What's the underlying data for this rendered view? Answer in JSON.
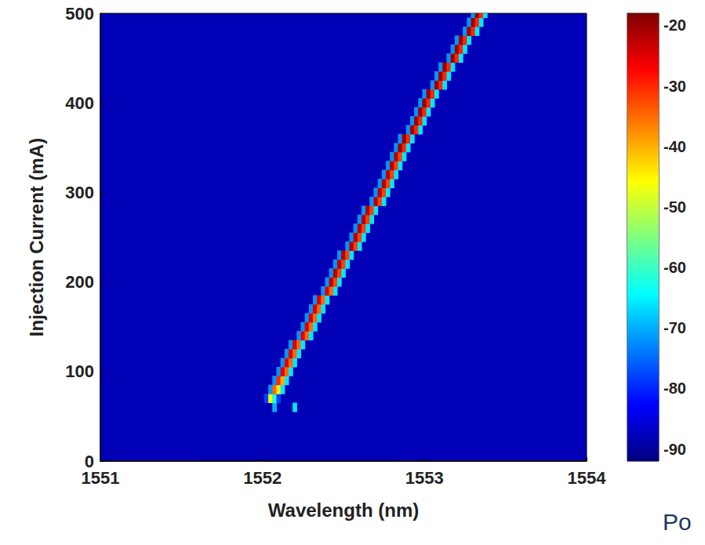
{
  "chart_data": {
    "type": "heatmap",
    "x_label": "Wavelength (nm)",
    "y_label": "Injection Current (mA)",
    "xlim": [
      1551,
      1554
    ],
    "xticks": [
      1551,
      1552,
      1553,
      1554
    ],
    "ylim": [
      0,
      500
    ],
    "yticks": [
      0,
      100,
      200,
      300,
      400,
      500
    ],
    "background_value": -88,
    "colorbar": {
      "range": [
        -92,
        -18
      ],
      "ticks": [
        -20,
        -30,
        -40,
        -50,
        -60,
        -70,
        -80,
        -90
      ]
    },
    "annotations": [
      "Po"
    ],
    "cells": [
      [
        1552.075,
        60,
        -70
      ],
      [
        1552.2,
        60,
        -66
      ],
      [
        1552.025,
        70,
        -78
      ],
      [
        1552.05,
        70,
        -45
      ],
      [
        1552.075,
        70,
        -62
      ],
      [
        1552.1,
        70,
        -78
      ],
      [
        1552.05,
        80,
        -72
      ],
      [
        1552.075,
        80,
        -35
      ],
      [
        1552.1,
        80,
        -45
      ],
      [
        1552.125,
        80,
        -66
      ],
      [
        1552.075,
        90,
        -72
      ],
      [
        1552.1,
        90,
        -30
      ],
      [
        1552.125,
        90,
        -40
      ],
      [
        1552.15,
        90,
        -66
      ],
      [
        1552.1,
        100,
        -72
      ],
      [
        1552.125,
        100,
        -25
      ],
      [
        1552.15,
        100,
        -35
      ],
      [
        1552.175,
        100,
        -66
      ],
      [
        1552.125,
        110,
        -72
      ],
      [
        1552.15,
        110,
        -25
      ],
      [
        1552.175,
        110,
        -35
      ],
      [
        1552.2,
        110,
        -66
      ],
      [
        1552.15,
        120,
        -72
      ],
      [
        1552.175,
        120,
        -25
      ],
      [
        1552.2,
        120,
        -35
      ],
      [
        1552.225,
        120,
        -66
      ],
      [
        1552.175,
        130,
        -72
      ],
      [
        1552.2,
        130,
        -25
      ],
      [
        1552.225,
        130,
        -35
      ],
      [
        1552.25,
        130,
        -66
      ],
      [
        1552.225,
        140,
        -72
      ],
      [
        1552.25,
        140,
        -25
      ],
      [
        1552.275,
        140,
        -35
      ],
      [
        1552.3,
        140,
        -66
      ],
      [
        1552.25,
        150,
        -72
      ],
      [
        1552.275,
        150,
        -25
      ],
      [
        1552.3,
        150,
        -35
      ],
      [
        1552.325,
        150,
        -66
      ],
      [
        1552.275,
        160,
        -72
      ],
      [
        1552.3,
        160,
        -25
      ],
      [
        1552.325,
        160,
        -35
      ],
      [
        1552.35,
        160,
        -66
      ],
      [
        1552.3,
        170,
        -72
      ],
      [
        1552.325,
        170,
        -25
      ],
      [
        1552.35,
        170,
        -35
      ],
      [
        1552.375,
        170,
        -66
      ],
      [
        1552.325,
        180,
        -72
      ],
      [
        1552.35,
        180,
        -25
      ],
      [
        1552.375,
        180,
        -35
      ],
      [
        1552.4,
        180,
        -66
      ],
      [
        1552.375,
        190,
        -72
      ],
      [
        1552.4,
        190,
        -25
      ],
      [
        1552.425,
        190,
        -35
      ],
      [
        1552.45,
        190,
        -66
      ],
      [
        1552.4,
        200,
        -72
      ],
      [
        1552.425,
        200,
        -22
      ],
      [
        1552.45,
        200,
        -32
      ],
      [
        1552.475,
        200,
        -66
      ],
      [
        1552.425,
        210,
        -72
      ],
      [
        1552.45,
        210,
        -22
      ],
      [
        1552.475,
        210,
        -32
      ],
      [
        1552.5,
        210,
        -66
      ],
      [
        1552.45,
        220,
        -72
      ],
      [
        1552.475,
        220,
        -22
      ],
      [
        1552.5,
        220,
        -32
      ],
      [
        1552.525,
        220,
        -66
      ],
      [
        1552.475,
        230,
        -72
      ],
      [
        1552.5,
        230,
        -22
      ],
      [
        1552.525,
        230,
        -32
      ],
      [
        1552.55,
        230,
        -66
      ],
      [
        1552.525,
        240,
        -72
      ],
      [
        1552.55,
        240,
        -22
      ],
      [
        1552.575,
        240,
        -32
      ],
      [
        1552.6,
        240,
        -66
      ],
      [
        1552.55,
        250,
        -72
      ],
      [
        1552.575,
        250,
        -22
      ],
      [
        1552.6,
        250,
        -32
      ],
      [
        1552.625,
        250,
        -66
      ],
      [
        1552.575,
        260,
        -72
      ],
      [
        1552.6,
        260,
        -22
      ],
      [
        1552.625,
        260,
        -32
      ],
      [
        1552.65,
        260,
        -66
      ],
      [
        1552.6,
        270,
        -72
      ],
      [
        1552.625,
        270,
        -22
      ],
      [
        1552.65,
        270,
        -32
      ],
      [
        1552.675,
        270,
        -66
      ],
      [
        1552.625,
        280,
        -72
      ],
      [
        1552.65,
        280,
        -22
      ],
      [
        1552.675,
        280,
        -32
      ],
      [
        1552.7,
        280,
        -66
      ],
      [
        1552.675,
        290,
        -72
      ],
      [
        1552.7,
        290,
        -22
      ],
      [
        1552.725,
        290,
        -32
      ],
      [
        1552.75,
        290,
        -66
      ],
      [
        1552.7,
        300,
        -72
      ],
      [
        1552.725,
        300,
        -22
      ],
      [
        1552.75,
        300,
        -32
      ],
      [
        1552.775,
        300,
        -66
      ],
      [
        1552.725,
        310,
        -72
      ],
      [
        1552.75,
        310,
        -22
      ],
      [
        1552.775,
        310,
        -32
      ],
      [
        1552.8,
        310,
        -66
      ],
      [
        1552.75,
        320,
        -72
      ],
      [
        1552.775,
        320,
        -22
      ],
      [
        1552.8,
        320,
        -32
      ],
      [
        1552.825,
        320,
        -66
      ],
      [
        1552.775,
        330,
        -72
      ],
      [
        1552.8,
        330,
        -22
      ],
      [
        1552.825,
        330,
        -32
      ],
      [
        1552.85,
        330,
        -66
      ],
      [
        1552.8,
        340,
        -72
      ],
      [
        1552.825,
        340,
        -22
      ],
      [
        1552.85,
        340,
        -32
      ],
      [
        1552.875,
        340,
        -66
      ],
      [
        1552.825,
        350,
        -72
      ],
      [
        1552.85,
        350,
        -20
      ],
      [
        1552.875,
        350,
        -30
      ],
      [
        1552.9,
        350,
        -66
      ],
      [
        1552.85,
        360,
        -72
      ],
      [
        1552.875,
        360,
        -20
      ],
      [
        1552.9,
        360,
        -30
      ],
      [
        1552.925,
        360,
        -66
      ],
      [
        1552.9,
        370,
        -72
      ],
      [
        1552.925,
        370,
        -20
      ],
      [
        1552.95,
        370,
        -30
      ],
      [
        1552.975,
        370,
        -66
      ],
      [
        1552.925,
        380,
        -72
      ],
      [
        1552.95,
        380,
        -20
      ],
      [
        1552.975,
        380,
        -30
      ],
      [
        1553.0,
        380,
        -66
      ],
      [
        1552.95,
        390,
        -72
      ],
      [
        1552.975,
        390,
        -20
      ],
      [
        1553.0,
        390,
        -30
      ],
      [
        1553.025,
        390,
        -66
      ],
      [
        1552.975,
        400,
        -72
      ],
      [
        1553.0,
        400,
        -20
      ],
      [
        1553.025,
        400,
        -30
      ],
      [
        1553.05,
        400,
        -66
      ],
      [
        1553.0,
        410,
        -72
      ],
      [
        1553.025,
        410,
        -20
      ],
      [
        1553.05,
        410,
        -30
      ],
      [
        1553.075,
        410,
        -66
      ],
      [
        1553.05,
        420,
        -72
      ],
      [
        1553.075,
        420,
        -20
      ],
      [
        1553.1,
        420,
        -30
      ],
      [
        1553.125,
        420,
        -66
      ],
      [
        1553.075,
        430,
        -72
      ],
      [
        1553.1,
        430,
        -20
      ],
      [
        1553.125,
        430,
        -30
      ],
      [
        1553.15,
        430,
        -66
      ],
      [
        1553.1,
        440,
        -72
      ],
      [
        1553.125,
        440,
        -20
      ],
      [
        1553.15,
        440,
        -30
      ],
      [
        1553.175,
        440,
        -66
      ],
      [
        1553.15,
        450,
        -72
      ],
      [
        1553.175,
        450,
        -20
      ],
      [
        1553.2,
        450,
        -30
      ],
      [
        1553.225,
        450,
        -66
      ],
      [
        1553.175,
        460,
        -72
      ],
      [
        1553.2,
        460,
        -20
      ],
      [
        1553.225,
        460,
        -30
      ],
      [
        1553.25,
        460,
        -66
      ],
      [
        1553.2,
        470,
        -72
      ],
      [
        1553.225,
        470,
        -20
      ],
      [
        1553.25,
        470,
        -30
      ],
      [
        1553.275,
        470,
        -66
      ],
      [
        1553.25,
        480,
        -72
      ],
      [
        1553.275,
        480,
        -20
      ],
      [
        1553.3,
        480,
        -30
      ],
      [
        1553.325,
        480,
        -66
      ],
      [
        1553.275,
        490,
        -72
      ],
      [
        1553.3,
        490,
        -20
      ],
      [
        1553.325,
        490,
        -30
      ],
      [
        1553.35,
        490,
        -66
      ],
      [
        1553.3,
        500,
        -72
      ],
      [
        1553.325,
        500,
        -20
      ],
      [
        1553.35,
        500,
        -30
      ],
      [
        1553.375,
        500,
        -66
      ]
    ]
  }
}
